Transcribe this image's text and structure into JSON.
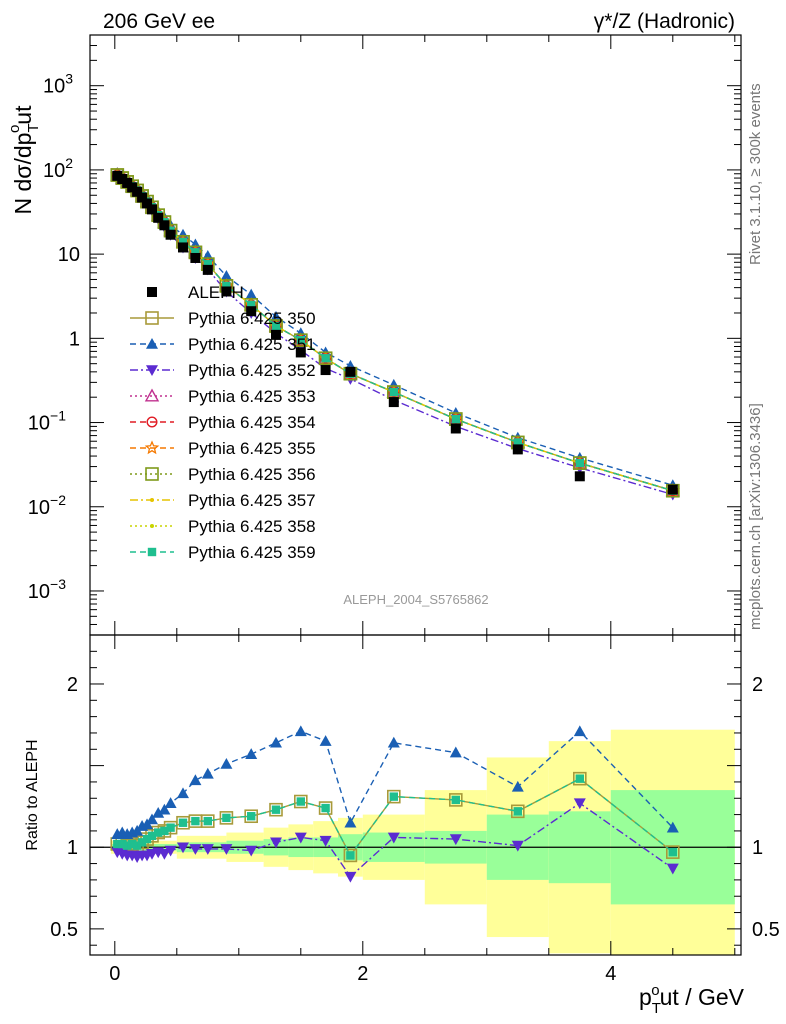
{
  "header": {
    "left": "206 GeV ee",
    "right": "γ*/Z (Hadronic)"
  },
  "side_text": {
    "rivet": "Rivet 3.1.10, ≥ 300k events",
    "mcplots": "mcplots.cern.ch [arXiv:1306.3436]"
  },
  "watermark": "ALEPH_2004_S5765862",
  "chart_data": [
    {
      "type": "line",
      "panel": "main",
      "ylabel": "N dσ/dp_T^out",
      "yscale": "log",
      "ylim": [
        0.0003,
        4000
      ],
      "xlim": [
        -0.2,
        5.05
      ],
      "yticks": [
        "10^{-3}",
        "10^{-2}",
        "10^{-1}",
        "1",
        "10",
        "10^{2}",
        "10^{3}"
      ],
      "legend_position": "middle-left",
      "x": [
        0.02,
        0.06,
        0.1,
        0.14,
        0.18,
        0.22,
        0.26,
        0.3,
        0.35,
        0.4,
        0.45,
        0.55,
        0.65,
        0.75,
        0.9,
        1.1,
        1.3,
        1.5,
        1.7,
        1.9,
        2.25,
        2.75,
        3.25,
        3.75,
        4.5
      ],
      "data": {
        "name": "ALEPH",
        "y": [
          85,
          78,
          70,
          62,
          55,
          47,
          40,
          34,
          27,
          22,
          17,
          12,
          9.0,
          6.5,
          3.6,
          2.1,
          1.1,
          0.68,
          0.42,
          0.4,
          0.175,
          0.085,
          0.048,
          0.023,
          0.016
        ]
      },
      "series": [
        {
          "name": "Pythia 6.425 350",
          "color": "#a89a3a",
          "dash": "solid",
          "marker": "square-open",
          "y": [
            87,
            80,
            72,
            64,
            57,
            49,
            42,
            36,
            29,
            24,
            19,
            14,
            10.5,
            7.6,
            4.2,
            2.5,
            1.4,
            0.95,
            0.58,
            0.38,
            0.23,
            0.11,
            0.058,
            0.033,
            0.0155
          ]
        },
        {
          "name": "Pythia 6.425 351",
          "color": "#1a5fb4",
          "dash": "dashed",
          "marker": "triangle-up",
          "y": [
            92,
            85,
            76,
            68,
            61,
            53,
            46,
            40,
            32,
            27,
            22,
            17,
            13,
            9.5,
            5.5,
            3.3,
            1.8,
            1.15,
            0.68,
            0.47,
            0.28,
            0.13,
            0.066,
            0.038,
            0.018
          ]
        },
        {
          "name": "Pythia 6.425 352",
          "color": "#5b2bd1",
          "dash": "dashdot",
          "marker": "triangle-down",
          "y": [
            82,
            75,
            67,
            59,
            52,
            45,
            38,
            33,
            26,
            21,
            17,
            12,
            9.0,
            6.6,
            3.6,
            2.0,
            1.15,
            0.72,
            0.44,
            0.33,
            0.185,
            0.09,
            0.049,
            0.029,
            0.014
          ]
        },
        {
          "name": "Pythia 6.425 353",
          "color": "#c0308f",
          "dash": "dotted",
          "marker": "triangle-open",
          "y": [
            87,
            80,
            72,
            64,
            57,
            49,
            42,
            36,
            29,
            24,
            19,
            14,
            10.5,
            7.6,
            4.2,
            2.5,
            1.4,
            0.95,
            0.58,
            0.38,
            0.23,
            0.11,
            0.058,
            0.033,
            0.0155
          ]
        },
        {
          "name": "Pythia 6.425 354",
          "color": "#e01b24",
          "dash": "dashed",
          "marker": "circle-open",
          "y": [
            87,
            80,
            72,
            64,
            57,
            49,
            42,
            36,
            29,
            24,
            19,
            14,
            10.5,
            7.6,
            4.2,
            2.5,
            1.4,
            0.95,
            0.58,
            0.38,
            0.23,
            0.11,
            0.058,
            0.033,
            0.0155
          ]
        },
        {
          "name": "Pythia 6.425 355",
          "color": "#f57900",
          "dash": "dashed",
          "marker": "star-open",
          "y": [
            87,
            80,
            72,
            64,
            57,
            49,
            42,
            36,
            29,
            24,
            19,
            14,
            10.5,
            7.6,
            4.2,
            2.5,
            1.4,
            0.95,
            0.58,
            0.38,
            0.23,
            0.11,
            0.058,
            0.033,
            0.0155
          ]
        },
        {
          "name": "Pythia 6.425 356",
          "color": "#7f9a1a",
          "dash": "dotted",
          "marker": "square-open",
          "y": [
            87,
            80,
            72,
            64,
            57,
            49,
            42,
            36,
            29,
            24,
            19,
            14,
            10.5,
            7.6,
            4.2,
            2.5,
            1.4,
            0.95,
            0.58,
            0.38,
            0.23,
            0.11,
            0.058,
            0.033,
            0.0155
          ]
        },
        {
          "name": "Pythia 6.425 357",
          "color": "#e5c400",
          "dash": "dashdot",
          "marker": "dot",
          "y": [
            87,
            80,
            72,
            64,
            57,
            49,
            42,
            36,
            29,
            24,
            19,
            14,
            10.5,
            7.6,
            4.2,
            2.5,
            1.4,
            0.95,
            0.58,
            0.38,
            0.23,
            0.11,
            0.058,
            0.033,
            0.0155
          ]
        },
        {
          "name": "Pythia 6.425 358",
          "color": "#c8d400",
          "dash": "dotted",
          "marker": "dot",
          "y": [
            87,
            80,
            72,
            64,
            57,
            49,
            42,
            36,
            29,
            24,
            19,
            14,
            10.5,
            7.6,
            4.2,
            2.5,
            1.4,
            0.95,
            0.58,
            0.38,
            0.23,
            0.11,
            0.058,
            0.033,
            0.0155
          ]
        },
        {
          "name": "Pythia 6.425 359",
          "color": "#1fbf8f",
          "dash": "dashed",
          "marker": "square-filled",
          "y": [
            87,
            80,
            72,
            64,
            57,
            49,
            42,
            36,
            29,
            24,
            19,
            14,
            10.5,
            7.6,
            4.2,
            2.5,
            1.4,
            0.95,
            0.58,
            0.38,
            0.23,
            0.11,
            0.058,
            0.033,
            0.0155
          ]
        }
      ]
    },
    {
      "type": "line",
      "panel": "ratio",
      "ylabel": "Ratio to ALEPH",
      "xlabel": "p_T^out / GeV",
      "ylim": [
        0.34,
        2.3
      ],
      "xlim": [
        -0.2,
        5.05
      ],
      "xticks": [
        "0",
        "2",
        "4"
      ],
      "yticks": [
        "0.5",
        "1",
        "2"
      ],
      "bands": {
        "edges": [
          -0.03,
          0.5,
          0.9,
          1.2,
          1.4,
          1.6,
          1.8,
          2.0,
          2.5,
          3.0,
          3.5,
          4.0,
          5.0
        ],
        "stat_half_width": [
          0.02,
          0.03,
          0.04,
          0.05,
          0.06,
          0.06,
          0.08,
          0.09,
          0.1,
          0.2,
          0.22,
          0.35
        ],
        "total_half_width": [
          0.04,
          0.07,
          0.09,
          0.12,
          0.14,
          0.16,
          0.18,
          0.2,
          0.35,
          0.55,
          0.65,
          0.72
        ],
        "stat_color": "#99ff99",
        "total_color": "#ffff99"
      },
      "series": [
        {
          "name": "Pythia 6.425 350",
          "color": "#a89a3a",
          "y": [
            1.02,
            1.02,
            1.01,
            1.02,
            1.01,
            1.03,
            1.05,
            1.07,
            1.09,
            1.1,
            1.12,
            1.15,
            1.16,
            1.16,
            1.18,
            1.19,
            1.23,
            1.28,
            1.24,
            0.95,
            1.31,
            1.29,
            1.22,
            1.42,
            0.97
          ]
        },
        {
          "name": "Pythia 6.425 351",
          "color": "#1a5fb4",
          "y": [
            1.08,
            1.09,
            1.08,
            1.09,
            1.1,
            1.13,
            1.14,
            1.17,
            1.21,
            1.23,
            1.27,
            1.33,
            1.41,
            1.45,
            1.51,
            1.57,
            1.64,
            1.71,
            1.65,
            1.15,
            1.64,
            1.58,
            1.37,
            1.71,
            1.12
          ]
        },
        {
          "name": "Pythia 6.425 352",
          "color": "#5b2bd1",
          "y": [
            0.97,
            0.96,
            0.95,
            0.95,
            0.94,
            0.95,
            0.95,
            0.96,
            0.97,
            0.96,
            0.98,
            1.0,
            0.99,
            0.99,
            0.99,
            0.98,
            1.03,
            1.06,
            1.04,
            0.82,
            1.06,
            1.05,
            1.01,
            1.27,
            0.87
          ]
        },
        {
          "name": "Pythia 6.425 359",
          "color": "#1fbf8f",
          "y": [
            1.02,
            1.02,
            1.01,
            1.02,
            1.01,
            1.03,
            1.05,
            1.07,
            1.09,
            1.1,
            1.12,
            1.15,
            1.16,
            1.16,
            1.18,
            1.19,
            1.23,
            1.28,
            1.24,
            0.95,
            1.31,
            1.29,
            1.22,
            1.42,
            0.97
          ]
        }
      ]
    }
  ]
}
